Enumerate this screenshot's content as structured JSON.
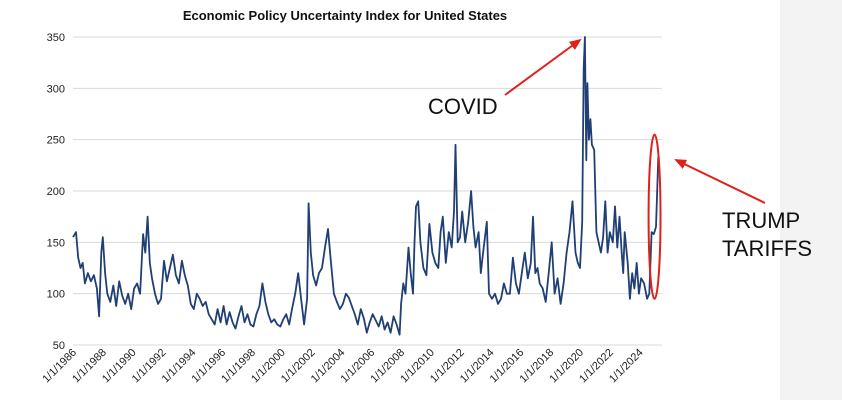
{
  "chart_data": {
    "type": "line",
    "title": "Economic Policy Uncertainty Index for United States",
    "xlabel": "",
    "ylabel": "",
    "ylim": [
      50,
      350
    ],
    "xlim": [
      1986,
      2025.5
    ],
    "y_ticks": [
      "50",
      "100",
      "150",
      "200",
      "250",
      "300",
      "350"
    ],
    "x_ticks": [
      "1/1/1986",
      "1/1/1988",
      "1/1/1990",
      "1/1/1992",
      "1/1/1994",
      "1/1/1996",
      "1/1/1998",
      "1/1/2000",
      "1/1/2002",
      "1/1/2004",
      "1/1/2006",
      "1/1/2008",
      "1/1/2010",
      "1/1/2012",
      "1/1/2014",
      "1/1/2016",
      "1/1/2018",
      "1/1/2020",
      "1/1/2022",
      "1/1/2024"
    ],
    "grid": true,
    "series": [
      {
        "name": "Economic Policy Uncertainty Index",
        "color": "#1f3f75",
        "points": [
          [
            1986.0,
            155
          ],
          [
            1986.2,
            160
          ],
          [
            1986.35,
            135
          ],
          [
            1986.5,
            125
          ],
          [
            1986.65,
            130
          ],
          [
            1986.8,
            110
          ],
          [
            1987.0,
            120
          ],
          [
            1987.2,
            112
          ],
          [
            1987.4,
            118
          ],
          [
            1987.6,
            105
          ],
          [
            1987.75,
            78
          ],
          [
            1987.9,
            140
          ],
          [
            1988.0,
            155
          ],
          [
            1988.15,
            120
          ],
          [
            1988.3,
            100
          ],
          [
            1988.5,
            92
          ],
          [
            1988.7,
            108
          ],
          [
            1988.9,
            88
          ],
          [
            1989.1,
            112
          ],
          [
            1989.3,
            98
          ],
          [
            1989.5,
            90
          ],
          [
            1989.7,
            100
          ],
          [
            1989.9,
            85
          ],
          [
            1990.1,
            105
          ],
          [
            1990.3,
            110
          ],
          [
            1990.5,
            100
          ],
          [
            1990.7,
            158
          ],
          [
            1990.85,
            140
          ],
          [
            1991.0,
            175
          ],
          [
            1991.15,
            130
          ],
          [
            1991.3,
            115
          ],
          [
            1991.5,
            100
          ],
          [
            1991.7,
            90
          ],
          [
            1991.9,
            95
          ],
          [
            1992.1,
            132
          ],
          [
            1992.3,
            112
          ],
          [
            1992.5,
            125
          ],
          [
            1992.7,
            138
          ],
          [
            1992.9,
            118
          ],
          [
            1993.1,
            110
          ],
          [
            1993.3,
            132
          ],
          [
            1993.5,
            118
          ],
          [
            1993.7,
            108
          ],
          [
            1993.9,
            90
          ],
          [
            1994.1,
            85
          ],
          [
            1994.3,
            100
          ],
          [
            1994.5,
            95
          ],
          [
            1994.7,
            88
          ],
          [
            1994.9,
            92
          ],
          [
            1995.1,
            80
          ],
          [
            1995.3,
            75
          ],
          [
            1995.5,
            70
          ],
          [
            1995.7,
            85
          ],
          [
            1995.9,
            72
          ],
          [
            1996.1,
            88
          ],
          [
            1996.3,
            70
          ],
          [
            1996.5,
            82
          ],
          [
            1996.7,
            72
          ],
          [
            1996.9,
            66
          ],
          [
            1997.1,
            78
          ],
          [
            1997.3,
            88
          ],
          [
            1997.5,
            72
          ],
          [
            1997.7,
            80
          ],
          [
            1997.9,
            70
          ],
          [
            1998.1,
            68
          ],
          [
            1998.3,
            80
          ],
          [
            1998.5,
            88
          ],
          [
            1998.7,
            110
          ],
          [
            1998.9,
            92
          ],
          [
            1999.1,
            80
          ],
          [
            1999.3,
            72
          ],
          [
            1999.5,
            75
          ],
          [
            1999.7,
            70
          ],
          [
            1999.9,
            68
          ],
          [
            2000.1,
            75
          ],
          [
            2000.3,
            80
          ],
          [
            2000.5,
            70
          ],
          [
            2000.7,
            86
          ],
          [
            2000.9,
            100
          ],
          [
            2001.1,
            120
          ],
          [
            2001.3,
            95
          ],
          [
            2001.5,
            70
          ],
          [
            2001.7,
            95
          ],
          [
            2001.8,
            188
          ],
          [
            2001.95,
            140
          ],
          [
            2002.1,
            118
          ],
          [
            2002.3,
            108
          ],
          [
            2002.5,
            120
          ],
          [
            2002.7,
            125
          ],
          [
            2002.9,
            145
          ],
          [
            2003.1,
            163
          ],
          [
            2003.3,
            130
          ],
          [
            2003.5,
            100
          ],
          [
            2003.7,
            92
          ],
          [
            2003.9,
            85
          ],
          [
            2004.1,
            90
          ],
          [
            2004.3,
            100
          ],
          [
            2004.5,
            96
          ],
          [
            2004.7,
            88
          ],
          [
            2004.9,
            80
          ],
          [
            2005.1,
            70
          ],
          [
            2005.3,
            85
          ],
          [
            2005.5,
            76
          ],
          [
            2005.7,
            62
          ],
          [
            2005.9,
            72
          ],
          [
            2006.1,
            80
          ],
          [
            2006.3,
            74
          ],
          [
            2006.5,
            68
          ],
          [
            2006.7,
            78
          ],
          [
            2006.9,
            65
          ],
          [
            2007.1,
            72
          ],
          [
            2007.3,
            62
          ],
          [
            2007.5,
            78
          ],
          [
            2007.7,
            70
          ],
          [
            2007.9,
            60
          ],
          [
            2008.0,
            90
          ],
          [
            2008.15,
            110
          ],
          [
            2008.3,
            100
          ],
          [
            2008.5,
            145
          ],
          [
            2008.65,
            120
          ],
          [
            2008.8,
            100
          ],
          [
            2008.9,
            150
          ],
          [
            2009.0,
            185
          ],
          [
            2009.15,
            190
          ],
          [
            2009.3,
            150
          ],
          [
            2009.5,
            125
          ],
          [
            2009.7,
            118
          ],
          [
            2009.9,
            168
          ],
          [
            2010.1,
            140
          ],
          [
            2010.3,
            130
          ],
          [
            2010.5,
            125
          ],
          [
            2010.65,
            160
          ],
          [
            2010.8,
            175
          ],
          [
            2011.0,
            130
          ],
          [
            2011.2,
            160
          ],
          [
            2011.4,
            145
          ],
          [
            2011.55,
            180
          ],
          [
            2011.65,
            245
          ],
          [
            2011.8,
            150
          ],
          [
            2011.95,
            155
          ],
          [
            2012.1,
            180
          ],
          [
            2012.3,
            150
          ],
          [
            2012.5,
            170
          ],
          [
            2012.7,
            200
          ],
          [
            2012.85,
            165
          ],
          [
            2013.0,
            145
          ],
          [
            2013.2,
            160
          ],
          [
            2013.35,
            120
          ],
          [
            2013.5,
            140
          ],
          [
            2013.75,
            170
          ],
          [
            2013.9,
            100
          ],
          [
            2014.1,
            95
          ],
          [
            2014.3,
            100
          ],
          [
            2014.5,
            90
          ],
          [
            2014.7,
            95
          ],
          [
            2014.9,
            110
          ],
          [
            2015.1,
            100
          ],
          [
            2015.3,
            100
          ],
          [
            2015.5,
            135
          ],
          [
            2015.7,
            110
          ],
          [
            2015.9,
            100
          ],
          [
            2016.1,
            120
          ],
          [
            2016.3,
            140
          ],
          [
            2016.5,
            115
          ],
          [
            2016.7,
            130
          ],
          [
            2016.85,
            175
          ],
          [
            2017.0,
            120
          ],
          [
            2017.15,
            125
          ],
          [
            2017.3,
            110
          ],
          [
            2017.5,
            105
          ],
          [
            2017.7,
            92
          ],
          [
            2017.9,
            120
          ],
          [
            2018.1,
            150
          ],
          [
            2018.3,
            100
          ],
          [
            2018.5,
            115
          ],
          [
            2018.7,
            90
          ],
          [
            2018.9,
            110
          ],
          [
            2019.1,
            140
          ],
          [
            2019.3,
            160
          ],
          [
            2019.5,
            190
          ],
          [
            2019.7,
            140
          ],
          [
            2019.85,
            130
          ],
          [
            2020.0,
            125
          ],
          [
            2020.15,
            170
          ],
          [
            2020.25,
            320
          ],
          [
            2020.33,
            350
          ],
          [
            2020.42,
            230
          ],
          [
            2020.5,
            305
          ],
          [
            2020.6,
            250
          ],
          [
            2020.7,
            270
          ],
          [
            2020.8,
            245
          ],
          [
            2020.95,
            240
          ],
          [
            2021.1,
            160
          ],
          [
            2021.25,
            150
          ],
          [
            2021.4,
            140
          ],
          [
            2021.55,
            155
          ],
          [
            2021.7,
            190
          ],
          [
            2021.85,
            140
          ],
          [
            2022.0,
            160
          ],
          [
            2022.2,
            150
          ],
          [
            2022.35,
            185
          ],
          [
            2022.5,
            145
          ],
          [
            2022.65,
            175
          ],
          [
            2022.8,
            140
          ],
          [
            2022.9,
            120
          ],
          [
            2023.0,
            160
          ],
          [
            2023.2,
            130
          ],
          [
            2023.35,
            95
          ],
          [
            2023.5,
            120
          ],
          [
            2023.65,
            105
          ],
          [
            2023.8,
            130
          ],
          [
            2023.95,
            100
          ],
          [
            2024.1,
            115
          ],
          [
            2024.3,
            110
          ],
          [
            2024.5,
            95
          ],
          [
            2024.65,
            100
          ],
          [
            2024.8,
            160
          ],
          [
            2024.95,
            158
          ],
          [
            2025.1,
            165
          ],
          [
            2025.25,
            233
          ]
        ]
      }
    ],
    "annotations": [
      {
        "text": "COVID",
        "target": [
          2020.2,
          350
        ],
        "arrow_color": "#e0201b"
      },
      {
        "text": "TRUMP",
        "target": [
          2025.2,
          232
        ],
        "arrow_color": "#e0201b"
      },
      {
        "text": "TARIFFS",
        "target": [
          2025.2,
          232
        ],
        "arrow_color": "#e0201b"
      }
    ],
    "highlight": {
      "x_range": [
        2024.6,
        2025.4
      ],
      "y_range": [
        95,
        255
      ],
      "color": "#e0201b"
    }
  }
}
